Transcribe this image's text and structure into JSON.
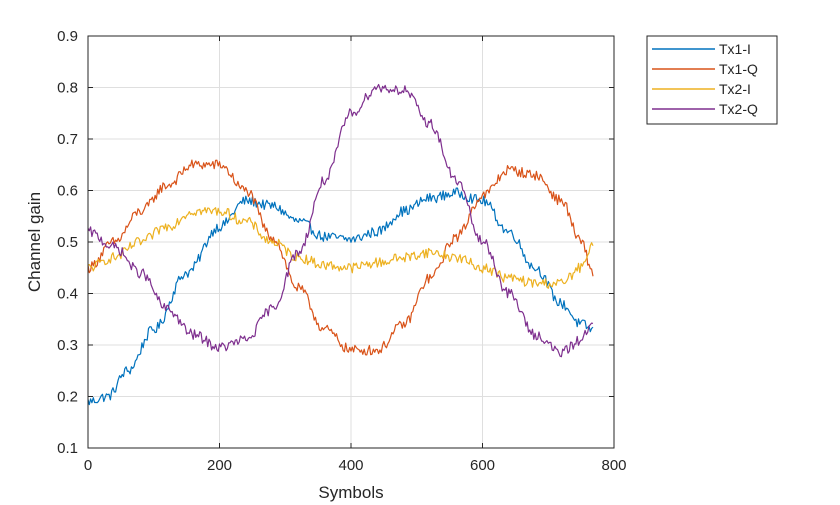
{
  "chart_data": {
    "type": "line",
    "xlabel": "Symbols",
    "ylabel": "Channel gain",
    "xlim": [
      0,
      800
    ],
    "ylim": [
      0.1,
      0.9
    ],
    "xticks": [
      0,
      200,
      400,
      600,
      800
    ],
    "yticks": [
      0.1,
      0.2,
      0.3,
      0.4,
      0.5,
      0.6,
      0.7,
      0.8,
      0.9
    ],
    "xtick_labels": [
      "0",
      "200",
      "400",
      "600",
      "800"
    ],
    "ytick_labels": [
      "0.1",
      "0.2",
      "0.3",
      "0.4",
      "0.5",
      "0.6",
      "0.7",
      "0.8",
      "0.9"
    ],
    "grid": true,
    "legend_position": "outside-top-right",
    "x_max_sample": 768,
    "series": [
      {
        "name": "Tx1-I",
        "color": "#0072BD",
        "points": [
          [
            0,
            0.19
          ],
          [
            30,
            0.2
          ],
          [
            60,
            0.25
          ],
          [
            100,
            0.33
          ],
          [
            150,
            0.44
          ],
          [
            200,
            0.53
          ],
          [
            240,
            0.58
          ],
          [
            280,
            0.57
          ],
          [
            320,
            0.54
          ],
          [
            360,
            0.51
          ],
          [
            400,
            0.505
          ],
          [
            440,
            0.52
          ],
          [
            480,
            0.56
          ],
          [
            520,
            0.585
          ],
          [
            560,
            0.595
          ],
          [
            600,
            0.58
          ],
          [
            640,
            0.52
          ],
          [
            680,
            0.45
          ],
          [
            720,
            0.38
          ],
          [
            750,
            0.34
          ],
          [
            768,
            0.33
          ]
        ]
      },
      {
        "name": "Tx1-Q",
        "color": "#D95319",
        "points": [
          [
            0,
            0.45
          ],
          [
            40,
            0.5
          ],
          [
            80,
            0.56
          ],
          [
            120,
            0.61
          ],
          [
            160,
            0.65
          ],
          [
            200,
            0.65
          ],
          [
            240,
            0.6
          ],
          [
            280,
            0.51
          ],
          [
            320,
            0.41
          ],
          [
            360,
            0.33
          ],
          [
            400,
            0.29
          ],
          [
            440,
            0.29
          ],
          [
            480,
            0.34
          ],
          [
            520,
            0.43
          ],
          [
            560,
            0.51
          ],
          [
            600,
            0.59
          ],
          [
            640,
            0.64
          ],
          [
            680,
            0.63
          ],
          [
            720,
            0.58
          ],
          [
            750,
            0.5
          ],
          [
            768,
            0.44
          ]
        ]
      },
      {
        "name": "Tx2-I",
        "color": "#EDB120",
        "points": [
          [
            0,
            0.45
          ],
          [
            40,
            0.47
          ],
          [
            80,
            0.5
          ],
          [
            120,
            0.53
          ],
          [
            160,
            0.56
          ],
          [
            200,
            0.56
          ],
          [
            240,
            0.54
          ],
          [
            280,
            0.5
          ],
          [
            320,
            0.47
          ],
          [
            360,
            0.455
          ],
          [
            400,
            0.45
          ],
          [
            440,
            0.46
          ],
          [
            480,
            0.47
          ],
          [
            520,
            0.48
          ],
          [
            560,
            0.47
          ],
          [
            600,
            0.45
          ],
          [
            640,
            0.43
          ],
          [
            680,
            0.42
          ],
          [
            720,
            0.42
          ],
          [
            750,
            0.45
          ],
          [
            768,
            0.49
          ]
        ]
      },
      {
        "name": "Tx2-Q",
        "color": "#7E2F8E",
        "points": [
          [
            0,
            0.52
          ],
          [
            40,
            0.49
          ],
          [
            80,
            0.44
          ],
          [
            120,
            0.37
          ],
          [
            160,
            0.32
          ],
          [
            200,
            0.295
          ],
          [
            240,
            0.31
          ],
          [
            280,
            0.37
          ],
          [
            320,
            0.48
          ],
          [
            360,
            0.62
          ],
          [
            400,
            0.75
          ],
          [
            440,
            0.8
          ],
          [
            480,
            0.795
          ],
          [
            520,
            0.73
          ],
          [
            560,
            0.62
          ],
          [
            600,
            0.5
          ],
          [
            640,
            0.4
          ],
          [
            680,
            0.32
          ],
          [
            720,
            0.285
          ],
          [
            750,
            0.31
          ],
          [
            768,
            0.35
          ]
        ]
      }
    ]
  }
}
